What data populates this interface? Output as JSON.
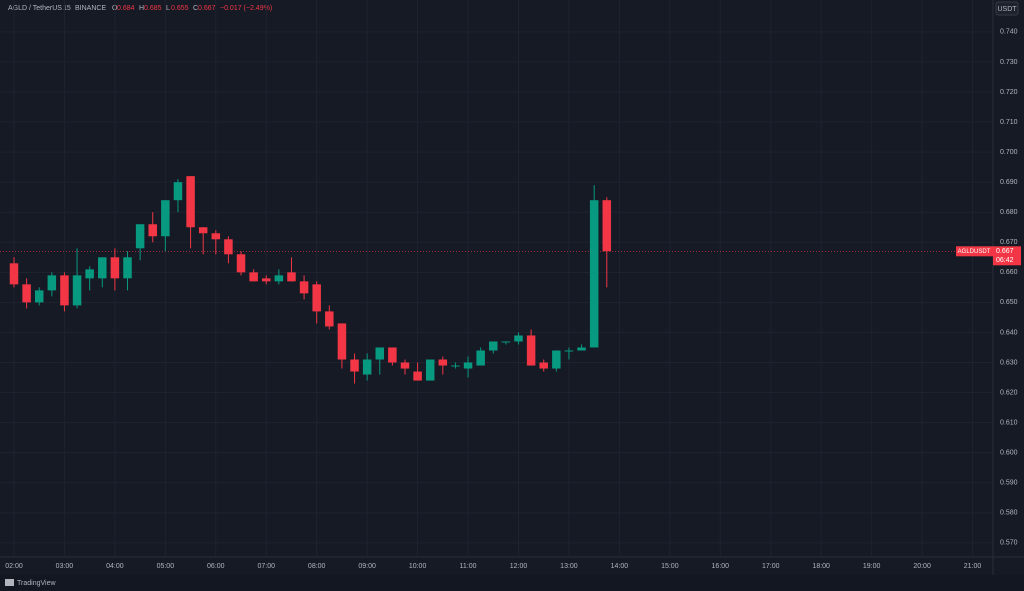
{
  "header": {
    "symbol": "AGLD / TetherUS",
    "interval": "15",
    "exchange": "BINANCE",
    "ohlc": [
      {
        "label": "O",
        "value": 0.684
      },
      {
        "label": "H",
        "value": 0.685
      },
      {
        "label": "L",
        "value": 0.655
      },
      {
        "label": "C",
        "value": 0.667
      }
    ],
    "change": "−0.017 (−2.49%)"
  },
  "currency": "USDT",
  "brand": "TradingView",
  "chart_data": {
    "type": "candlestick",
    "x": [
      "02:00",
      "02:15",
      "02:30",
      "02:45",
      "03:00",
      "03:15",
      "03:30",
      "03:45",
      "04:00",
      "04:15",
      "04:30",
      "04:45",
      "05:00",
      "05:15",
      "05:30",
      "05:45",
      "06:00",
      "06:15",
      "06:30",
      "06:45",
      "07:00",
      "07:15",
      "07:30",
      "07:45",
      "08:00",
      "08:15",
      "08:30",
      "08:45",
      "09:00",
      "09:15",
      "09:30",
      "09:45",
      "10:00",
      "10:15",
      "10:30",
      "10:45",
      "11:00",
      "11:15",
      "11:30",
      "11:45",
      "12:00",
      "12:15",
      "12:30",
      "12:45",
      "13:00",
      "13:15",
      "13:30",
      "13:45"
    ],
    "open": [
      0.663,
      0.656,
      0.65,
      0.654,
      0.659,
      0.649,
      0.658,
      0.658,
      0.665,
      0.658,
      0.668,
      0.676,
      0.672,
      0.684,
      0.692,
      0.675,
      0.673,
      0.671,
      0.666,
      0.66,
      0.658,
      0.657,
      0.66,
      0.657,
      0.656,
      0.647,
      0.643,
      0.631,
      0.626,
      0.631,
      0.635,
      0.63,
      0.627,
      0.624,
      0.631,
      0.629,
      0.628,
      0.629,
      0.634,
      0.637,
      0.637,
      0.639,
      0.63,
      0.628,
      0.634,
      0.634,
      0.635,
      0.684
    ],
    "high": [
      0.665,
      0.658,
      0.655,
      0.66,
      0.66,
      0.668,
      0.662,
      0.665,
      0.668,
      0.667,
      0.676,
      0.68,
      0.684,
      0.691,
      0.692,
      0.675,
      0.674,
      0.672,
      0.667,
      0.661,
      0.659,
      0.661,
      0.665,
      0.659,
      0.657,
      0.649,
      0.643,
      0.633,
      0.633,
      0.635,
      0.635,
      0.631,
      0.63,
      0.631,
      0.632,
      0.63,
      0.632,
      0.635,
      0.637,
      0.637,
      0.64,
      0.641,
      0.631,
      0.634,
      0.635,
      0.636,
      0.689,
      0.685
    ],
    "low": [
      0.655,
      0.648,
      0.649,
      0.652,
      0.647,
      0.648,
      0.654,
      0.655,
      0.654,
      0.654,
      0.664,
      0.67,
      0.667,
      0.68,
      0.668,
      0.666,
      0.666,
      0.663,
      0.659,
      0.657,
      0.656,
      0.656,
      0.657,
      0.651,
      0.643,
      0.641,
      0.628,
      0.623,
      0.624,
      0.626,
      0.629,
      0.626,
      0.624,
      0.624,
      0.626,
      0.628,
      0.625,
      0.629,
      0.633,
      0.636,
      0.636,
      0.629,
      0.627,
      0.627,
      0.631,
      0.634,
      0.635,
      0.655
    ],
    "close": [
      0.656,
      0.65,
      0.654,
      0.659,
      0.649,
      0.659,
      0.661,
      0.665,
      0.658,
      0.665,
      0.676,
      0.672,
      0.684,
      0.69,
      0.675,
      0.673,
      0.671,
      0.666,
      0.66,
      0.657,
      0.657,
      0.659,
      0.657,
      0.653,
      0.647,
      0.642,
      0.631,
      0.627,
      0.631,
      0.635,
      0.63,
      0.628,
      0.624,
      0.631,
      0.629,
      0.629,
      0.63,
      0.634,
      0.637,
      0.637,
      0.639,
      0.629,
      0.628,
      0.634,
      0.634,
      0.635,
      0.684,
      0.667
    ],
    "up_color": "#089981",
    "down_color": "#f23645",
    "ylim": [
      0.5653,
      0.7506
    ],
    "yticks": [
      {
        "value": 0.57,
        "label": "0.570"
      },
      {
        "value": 0.58,
        "label": "0.580"
      },
      {
        "value": 0.59,
        "label": "0.590"
      },
      {
        "value": 0.6,
        "label": "0.600"
      },
      {
        "value": 0.61,
        "label": "0.610"
      },
      {
        "value": 0.62,
        "label": "0.620"
      },
      {
        "value": 0.63,
        "label": "0.630"
      },
      {
        "value": 0.64,
        "label": "0.640"
      },
      {
        "value": 0.65,
        "label": "0.650"
      },
      {
        "value": 0.66,
        "label": "0.660"
      },
      {
        "value": 0.67,
        "label": "0.670"
      },
      {
        "value": 0.68,
        "label": "0.680"
      },
      {
        "value": 0.69,
        "label": "0.690"
      },
      {
        "value": 0.7,
        "label": "0.700"
      },
      {
        "value": 0.71,
        "label": "0.710"
      },
      {
        "value": 0.72,
        "label": "0.720"
      },
      {
        "value": 0.73,
        "label": "0.730"
      },
      {
        "value": 0.74,
        "label": "0.740"
      }
    ],
    "xticks": [
      "02:00",
      "03:00",
      "04:00",
      "05:00",
      "06:00",
      "07:00",
      "08:00",
      "09:00",
      "10:00",
      "11:00",
      "12:00",
      "13:00",
      "14:00",
      "15:00",
      "16:00",
      "17:00",
      "18:00",
      "19:00",
      "20:00",
      "21:00"
    ],
    "grid": true,
    "last_price": {
      "symbol": "AGLDUSDT",
      "value": 0.667,
      "countdown": "06:42"
    }
  }
}
